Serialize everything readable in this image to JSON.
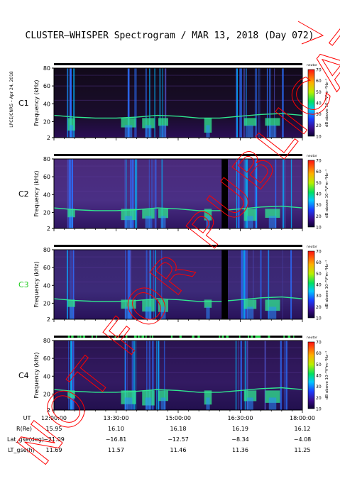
{
  "title": "CLUSTER–WHISPER Spectrogram / MAR 13, 2018 (Day 072)",
  "side_note": "LPCE/CNRS – Apr 24, 2018",
  "watermark": "NOT FOR PUBLICATION",
  "colors": {
    "title_text": "#000000",
    "c3_label": "#22cc22",
    "watermark": "#ff0000",
    "tracking_bar": "#000000",
    "tracking_gap": "#22cc44"
  },
  "chart_data": {
    "type": "heatmap",
    "panels": [
      {
        "label": "C1",
        "ylabel": "Frequency (kHz)",
        "yticks": [
          "2",
          "20",
          "40",
          "60",
          "80"
        ],
        "colorbar_title": "dB above 10⁻⁸V²m⁻²Hz⁻¹",
        "colorbar_ticks": [
          "10",
          "20",
          "30",
          "40",
          "50",
          "60",
          "70"
        ],
        "colorbar_top_label": "neutor"
      },
      {
        "label": "C2",
        "ylabel": "Frequency (kHz)",
        "yticks": [
          "2",
          "20",
          "40",
          "60",
          "80"
        ],
        "colorbar_title": "dB above 10⁻⁸V²m⁻²Hz⁻¹",
        "colorbar_ticks": [
          "10",
          "20",
          "30",
          "40",
          "50",
          "60",
          "70"
        ],
        "colorbar_top_label": "neutor"
      },
      {
        "label": "C3",
        "ylabel": "Frequency (kHz)",
        "yticks": [
          "2",
          "20",
          "40",
          "60",
          "80"
        ],
        "colorbar_title": "dB above 10⁻⁸V²m⁻²Hz⁻¹",
        "colorbar_ticks": [
          "10",
          "20",
          "30",
          "40",
          "50",
          "60",
          "70"
        ],
        "colorbar_top_label": "neutor"
      },
      {
        "label": "C4",
        "ylabel": "Frequency (kHz)",
        "yticks": [
          "2",
          "20",
          "40",
          "60",
          "80"
        ],
        "colorbar_title": "dB above 10⁻⁸V²m⁻²Hz⁻¹",
        "colorbar_ticks": [
          "10",
          "20",
          "30",
          "40",
          "50",
          "60",
          "70"
        ],
        "colorbar_top_label": "neutor"
      }
    ],
    "ylim": [
      2,
      80
    ],
    "color_range_db": [
      10,
      70
    ],
    "time_range": [
      "12:00:00",
      "18:00:00"
    ],
    "footer": {
      "labels": [
        "UT",
        "R(Re)",
        "Lat_gse(deg)",
        "LT_gse(h)"
      ],
      "rows": {
        "UT": [
          "12:00:00",
          "13:30:00",
          "15:00:00",
          "16:30:00",
          "18:00:00"
        ],
        "R(Re)": [
          "15.95",
          "16.10",
          "16.18",
          "16.19",
          "16.12"
        ],
        "Lat_gse(deg)": [
          "−21.09",
          "−16.81",
          "−12.57",
          "−8.34",
          "−4.08"
        ],
        "LT_gse(h)": [
          "11.69",
          "11.57",
          "11.46",
          "11.36",
          "11.25"
        ]
      }
    },
    "plasma_line_khz": [
      25,
      23,
      22,
      22,
      23,
      25,
      24,
      22,
      22,
      24,
      26,
      27,
      25
    ],
    "data_gaps_utc": [
      {
        "panel": "C2",
        "start": "16:03:00",
        "end": "16:12:00"
      },
      {
        "panel": "C3",
        "start": "16:03:00",
        "end": "16:12:00"
      }
    ]
  }
}
